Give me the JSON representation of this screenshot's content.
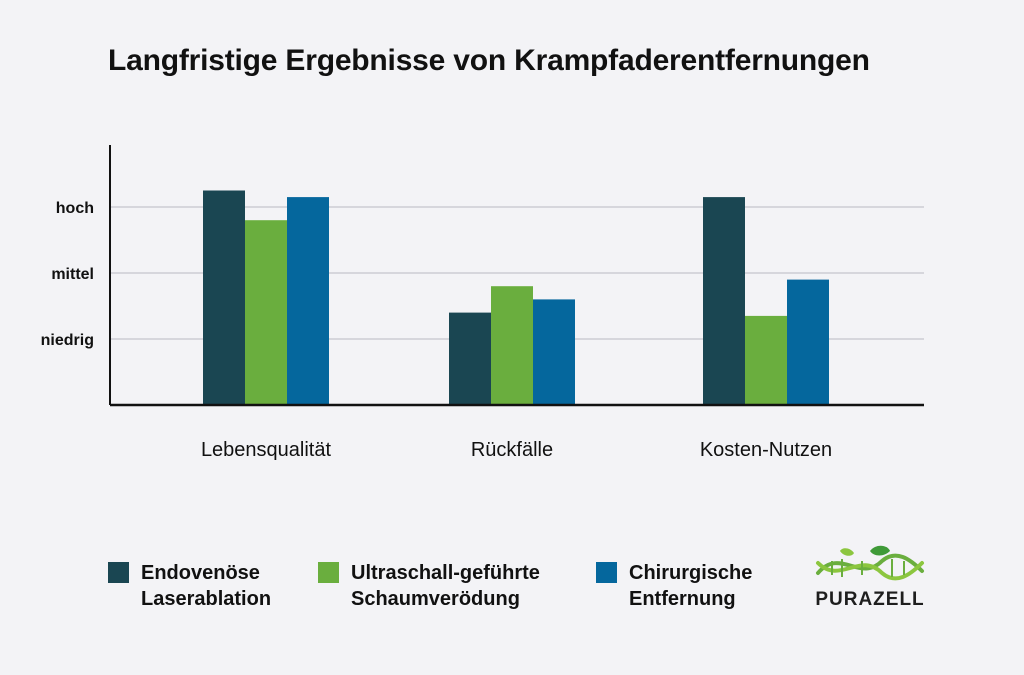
{
  "chart_data": {
    "type": "bar",
    "title": "Langfristige Ergebnisse von Krampfaderentfernungen",
    "categories": [
      "Lebensqualität",
      "Rückfälle",
      "Kosten-Nutzen"
    ],
    "y_ticks": [
      {
        "label": "niedrig",
        "value": 1
      },
      {
        "label": "mittel",
        "value": 2
      },
      {
        "label": "hoch",
        "value": 3
      }
    ],
    "ylim": [
      0,
      4
    ],
    "grid": true,
    "xlabel": "",
    "ylabel": "",
    "legend_position": "bottom",
    "series": [
      {
        "name": "Endovenöse Laserablation",
        "name_lines": [
          "Endovenöse",
          "Laserablation"
        ],
        "color": "#1a4652",
        "values": [
          3.25,
          1.4,
          3.15
        ]
      },
      {
        "name": "Ultraschall-geführte Schaumverödung",
        "name_lines": [
          "Ultraschall-geführte",
          "Schaumverödung"
        ],
        "color": "#6aae3e",
        "values": [
          2.8,
          1.8,
          1.35
        ]
      },
      {
        "name": "Chirurgische Entfernung",
        "name_lines": [
          "Chirurgische",
          "Entfernung"
        ],
        "color": "#05679d",
        "values": [
          3.15,
          1.6,
          1.9
        ]
      }
    ]
  },
  "logo": {
    "text": "PURAZELL"
  }
}
